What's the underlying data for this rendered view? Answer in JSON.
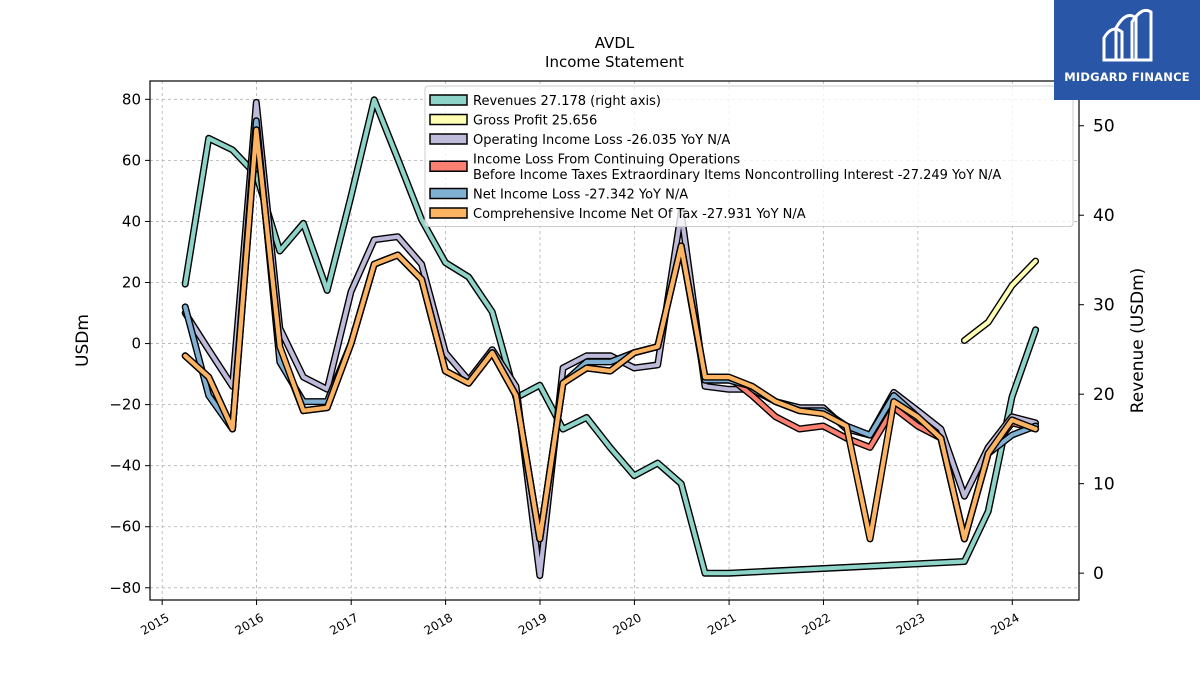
{
  "chart_data": {
    "type": "line",
    "title": "AVDL",
    "subtitle": "Income Statement",
    "ylabel": "USDm",
    "y2label": "Revenue (USDm)",
    "ylim": [
      -84,
      86
    ],
    "y2lim": [
      -3,
      55
    ],
    "yticks": [
      -80,
      -60,
      -40,
      -20,
      0,
      20,
      40,
      60,
      80
    ],
    "y2ticks": [
      0,
      10,
      20,
      30,
      40,
      50
    ],
    "xlim": [
      "2014-11-15",
      "2024-09-15"
    ],
    "xticks": [
      "2015",
      "2016",
      "2017",
      "2018",
      "2019",
      "2020",
      "2021",
      "2022",
      "2023",
      "2024"
    ],
    "grid": true,
    "legend_position": "top-right",
    "series": [
      {
        "name": "Revenues",
        "legend_label": "Revenues  27.178 (right axis)",
        "color": "#8dd3c7",
        "axis": "right",
        "x": [
          "2015-03-31",
          "2015-06-30",
          "2015-09-30",
          "2015-12-31",
          "2016-03-31",
          "2016-06-30",
          "2016-09-30",
          "2016-12-31",
          "2017-03-31",
          "2017-06-30",
          "2017-09-30",
          "2017-12-31",
          "2018-03-31",
          "2018-06-30",
          "2018-09-30",
          "2018-12-31",
          "2019-03-31",
          "2019-06-30",
          "2019-09-30",
          "2019-12-31",
          "2020-03-31",
          "2020-06-30",
          "2020-09-30",
          "2020-12-31",
          "2023-06-30",
          "2023-09-30",
          "2023-12-31",
          "2024-03-31"
        ],
        "values": [
          32.3,
          48.6,
          47.3,
          44.5,
          36.0,
          39.1,
          31.6,
          42.1,
          52.9,
          46.3,
          39.5,
          34.7,
          33.1,
          29.2,
          19.6,
          21.0,
          16.1,
          17.4,
          14.0,
          10.9,
          12.3,
          10.0,
          0.0,
          0.0,
          1.3,
          6.9,
          19.7,
          27.2
        ]
      },
      {
        "name": "Gross Profit",
        "legend_label": "Gross Profit  25.656",
        "color": "#ffffb3",
        "axis": "left",
        "x": [
          "2023-06-30",
          "2023-09-30",
          "2023-12-31",
          "2024-03-31"
        ],
        "values": [
          1.0,
          7.0,
          19.0,
          27.0
        ]
      },
      {
        "name": "Operating Income Loss",
        "legend_label": "Operating Income Loss  -26.035 YoY N/A",
        "color": "#bebada",
        "axis": "left",
        "x": [
          "2015-03-31",
          "2015-06-30",
          "2015-09-30",
          "2015-12-31",
          "2016-03-31",
          "2016-06-30",
          "2016-09-30",
          "2016-12-31",
          "2017-03-31",
          "2017-06-30",
          "2017-09-30",
          "2017-12-31",
          "2018-03-31",
          "2018-06-30",
          "2018-09-30",
          "2018-12-31",
          "2019-03-31",
          "2019-06-30",
          "2019-09-30",
          "2019-12-31",
          "2020-03-31",
          "2020-06-30",
          "2020-09-30",
          "2020-12-31",
          "2021-03-31",
          "2021-06-30",
          "2021-09-30",
          "2021-12-31",
          "2022-03-31",
          "2022-06-30",
          "2022-09-30",
          "2022-12-31",
          "2023-03-31",
          "2023-06-30",
          "2023-09-30",
          "2023-12-31",
          "2024-03-31"
        ],
        "values": [
          10.0,
          -2.0,
          -14.0,
          79.0,
          5.0,
          -11.0,
          -15.0,
          17.0,
          34.0,
          35.0,
          26.0,
          -3.0,
          -12.0,
          -2.0,
          -14.0,
          -76.0,
          -8.0,
          -4.0,
          -4.0,
          -8.0,
          -7.0,
          43.0,
          -14.0,
          -15.0,
          -15.0,
          -19.0,
          -21.0,
          -21.0,
          -28.0,
          -30.0,
          -16.0,
          -22.0,
          -28.0,
          -50.0,
          -34.0,
          -24.0,
          -26.0
        ]
      },
      {
        "name": "Income Loss From Continuing Operations Before Income Taxes Extraordinary Items Noncontrolling Interest",
        "legend_label_line1": "Income Loss From Continuing Operations",
        "legend_label_line2": "Before Income Taxes Extraordinary Items Noncontrolling Interest  -27.249 YoY N/A",
        "color": "#fb8072",
        "axis": "left",
        "x": [
          "2015-03-31",
          "2015-06-30",
          "2015-09-30",
          "2015-12-31",
          "2016-03-31",
          "2016-06-30",
          "2016-09-30",
          "2016-12-31",
          "2017-03-31",
          "2017-06-30",
          "2017-09-30",
          "2017-12-31",
          "2018-03-31",
          "2018-06-30",
          "2018-09-30",
          "2018-12-31",
          "2019-03-31",
          "2019-06-30",
          "2019-09-30",
          "2019-12-31",
          "2020-03-31",
          "2020-06-30",
          "2020-09-30",
          "2020-12-31",
          "2021-03-31",
          "2021-06-30",
          "2021-09-30",
          "2021-12-31",
          "2022-03-31",
          "2022-06-30",
          "2022-09-30",
          "2022-12-31",
          "2023-03-31",
          "2023-06-30",
          "2023-09-30",
          "2023-12-31",
          "2024-03-31"
        ],
        "values": [
          -4.0,
          -11.0,
          -28.0,
          70.0,
          -2.0,
          -22.0,
          -21.0,
          0.0,
          26.0,
          29.0,
          21.0,
          -9.0,
          -13.0,
          -3.0,
          -17.0,
          -64.0,
          -13.0,
          -8.0,
          -9.0,
          -3.0,
          -1.0,
          32.0,
          -11.0,
          -11.0,
          -17.0,
          -24.0,
          -28.0,
          -27.0,
          -31.0,
          -34.0,
          -21.0,
          -27.0,
          -31.0,
          -64.0,
          -36.0,
          -26.0,
          -28.0
        ]
      },
      {
        "name": "Net Income Loss",
        "legend_label": "Net Income Loss  -27.342 YoY N/A",
        "color": "#80b1d3",
        "axis": "left",
        "x": [
          "2015-03-31",
          "2015-06-30",
          "2015-09-30",
          "2015-12-31",
          "2016-03-31",
          "2016-06-30",
          "2016-09-30",
          "2016-12-31",
          "2017-03-31",
          "2017-06-30",
          "2017-09-30",
          "2017-12-31",
          "2018-03-31",
          "2018-06-30",
          "2018-09-30",
          "2018-12-31",
          "2019-03-31",
          "2019-06-30",
          "2019-09-30",
          "2019-12-31",
          "2020-03-31",
          "2020-06-30",
          "2020-09-30",
          "2020-12-31",
          "2021-03-31",
          "2021-06-30",
          "2021-09-30",
          "2021-12-31",
          "2022-03-31",
          "2022-06-30",
          "2022-09-30",
          "2022-12-31",
          "2023-03-31",
          "2023-06-30",
          "2023-09-30",
          "2023-12-31",
          "2024-03-31"
        ],
        "values": [
          12.0,
          -17.0,
          -28.0,
          73.0,
          -6.0,
          -19.0,
          -19.0,
          0.0,
          26.0,
          29.0,
          21.0,
          -9.0,
          -13.0,
          -3.0,
          -17.0,
          -64.0,
          -13.0,
          -6.0,
          -6.0,
          -3.0,
          -1.0,
          32.0,
          -12.0,
          -12.0,
          -14.0,
          -19.0,
          -22.0,
          -22.0,
          -27.0,
          -30.0,
          -17.0,
          -24.0,
          -31.0,
          -64.0,
          -36.0,
          -30.0,
          -27.0
        ]
      },
      {
        "name": "Comprehensive Income Net Of Tax",
        "legend_label": "Comprehensive Income Net Of Tax  -27.931 YoY N/A",
        "color": "#fdb462",
        "axis": "left",
        "x": [
          "2015-03-31",
          "2015-06-30",
          "2015-09-30",
          "2015-12-31",
          "2016-03-31",
          "2016-06-30",
          "2016-09-30",
          "2016-12-31",
          "2017-03-31",
          "2017-06-30",
          "2017-09-30",
          "2017-12-31",
          "2018-03-31",
          "2018-06-30",
          "2018-09-30",
          "2018-12-31",
          "2019-03-31",
          "2019-06-30",
          "2019-09-30",
          "2019-12-31",
          "2020-03-31",
          "2020-06-30",
          "2020-09-30",
          "2020-12-31",
          "2021-03-31",
          "2021-06-30",
          "2021-09-30",
          "2021-12-31",
          "2022-03-31",
          "2022-06-30",
          "2022-09-30",
          "2022-12-31",
          "2023-03-31",
          "2023-06-30",
          "2023-09-30",
          "2023-12-31",
          "2024-03-31"
        ],
        "values": [
          -4.0,
          -11.0,
          -28.0,
          70.0,
          -1.0,
          -22.0,
          -21.0,
          0.0,
          26.0,
          29.0,
          21.0,
          -9.0,
          -13.0,
          -3.0,
          -17.0,
          -64.0,
          -13.0,
          -8.0,
          -9.0,
          -3.0,
          -1.0,
          32.0,
          -11.0,
          -11.0,
          -14.0,
          -19.0,
          -22.0,
          -23.0,
          -27.0,
          -64.0,
          -19.0,
          -24.0,
          -31.0,
          -64.0,
          -36.0,
          -25.0,
          -28.0
        ]
      }
    ]
  },
  "logo": {
    "text": "MIDGARD FINANCE",
    "color": "#2a56a8"
  }
}
